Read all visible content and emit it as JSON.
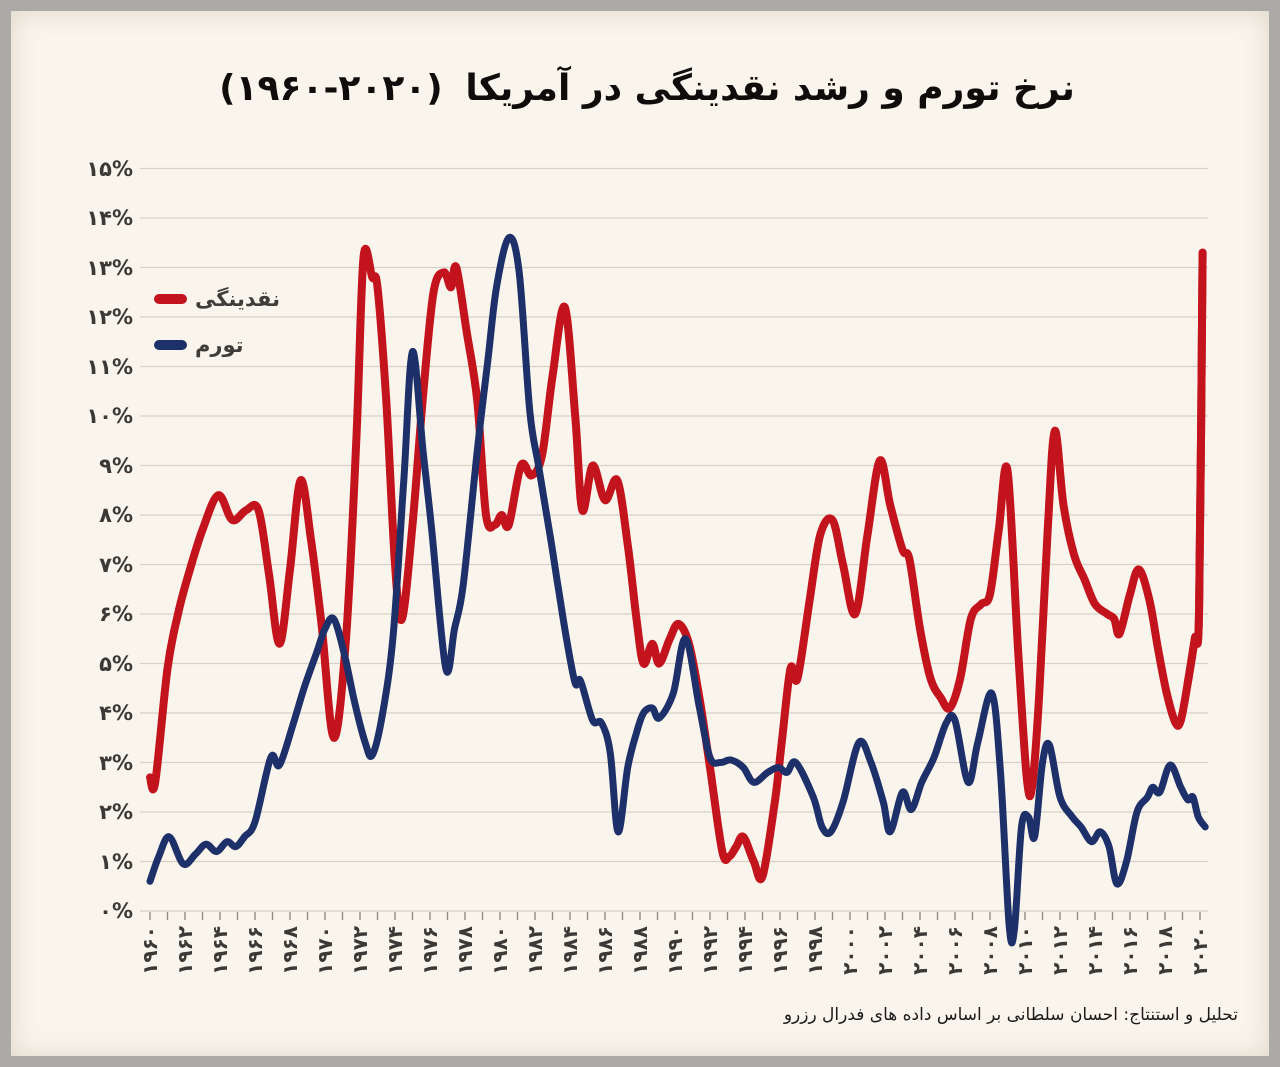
{
  "title": {
    "text": "نرخ تورم و رشد نقدینگی در آمریکا",
    "range": "(۱۹۶۰-۲۰۲۰)"
  },
  "legend": {
    "items": [
      {
        "label": "نقدینگی",
        "color": "#c3141e"
      },
      {
        "label": "تورم",
        "color": "#1e3069"
      }
    ]
  },
  "footer": {
    "text": "تحلیل و استنتاج: احسان سلطانی بر اساس داده های فدرال رزرو"
  },
  "colors": {
    "paper": "#faf5ec",
    "gridline": "#d8d2c6",
    "tick": "#8f8d86",
    "label": "#3a3936",
    "liquidity_red": "#c3141e",
    "inflation_navy": "#1e3069"
  },
  "chart_data": {
    "type": "line",
    "title": "نرخ تورم و رشد نقدینگی در آمریکا (۱۹۶۰-۲۰۲۰)",
    "xlabel": "",
    "ylabel": "%",
    "grid": true,
    "legend_position": "top-left",
    "x_axis": {
      "range": [
        1960,
        2020
      ],
      "minor_tick_step_years": 1,
      "ticks": [
        {
          "year": 1960,
          "label": "۱۹۶۰"
        },
        {
          "year": 1962,
          "label": "۱۹۶۲"
        },
        {
          "year": 1964,
          "label": "۱۹۶۴"
        },
        {
          "year": 1966,
          "label": "۱۹۶۶"
        },
        {
          "year": 1968,
          "label": "۱۹۶۸"
        },
        {
          "year": 1970,
          "label": "۱۹۷۰"
        },
        {
          "year": 1972,
          "label": "۱۹۷۲"
        },
        {
          "year": 1974,
          "label": "۱۹۷۴"
        },
        {
          "year": 1976,
          "label": "۱۹۷۶"
        },
        {
          "year": 1978,
          "label": "۱۹۷۸"
        },
        {
          "year": 1980,
          "label": "۱۹۸۰"
        },
        {
          "year": 1982,
          "label": "۱۹۸۲"
        },
        {
          "year": 1984,
          "label": "۱۹۸۴"
        },
        {
          "year": 1986,
          "label": "۱۹۸۶"
        },
        {
          "year": 1988,
          "label": "۱۹۸۸"
        },
        {
          "year": 1990,
          "label": "۱۹۹۰"
        },
        {
          "year": 1992,
          "label": "۱۹۹۲"
        },
        {
          "year": 1994,
          "label": "۱۹۹۴"
        },
        {
          "year": 1996,
          "label": "۱۹۹۶"
        },
        {
          "year": 1998,
          "label": "۱۹۹۸"
        },
        {
          "year": 2000,
          "label": "۲۰۰۰"
        },
        {
          "year": 2002,
          "label": "۲۰۰۲"
        },
        {
          "year": 2004,
          "label": "۲۰۰۴"
        },
        {
          "year": 2006,
          "label": "۲۰۰۶"
        },
        {
          "year": 2008,
          "label": "۲۰۰۸"
        },
        {
          "year": 2010,
          "label": "۲۰۱۰"
        },
        {
          "year": 2012,
          "label": "۲۰۱۲"
        },
        {
          "year": 2014,
          "label": "۲۰۱۴"
        },
        {
          "year": 2016,
          "label": "۲۰۱۶"
        },
        {
          "year": 2018,
          "label": "۲۰۱۸"
        },
        {
          "year": 2020,
          "label": "۲۰۲۰"
        }
      ]
    },
    "y_axis": {
      "range": [
        0,
        15
      ],
      "unit": "%",
      "ticks": [
        {
          "value": 0,
          "label": "۰%"
        },
        {
          "value": 1,
          "label": "۱%"
        },
        {
          "value": 2,
          "label": "۲%"
        },
        {
          "value": 3,
          "label": "۳%"
        },
        {
          "value": 4,
          "label": "۴%"
        },
        {
          "value": 5,
          "label": "۵%"
        },
        {
          "value": 6,
          "label": "۶%"
        },
        {
          "value": 7,
          "label": "۷%"
        },
        {
          "value": 8,
          "label": "۸%"
        },
        {
          "value": 9,
          "label": "۹%"
        },
        {
          "value": 10,
          "label": "۱۰%"
        },
        {
          "value": 11,
          "label": "۱۱%"
        },
        {
          "value": 12,
          "label": "۱۲%"
        },
        {
          "value": 13,
          "label": "۱۳%"
        },
        {
          "value": 14,
          "label": "۱۴%"
        },
        {
          "value": 15,
          "label": "۱۵%"
        }
      ]
    },
    "series": [
      {
        "name": "نقدینگی",
        "color": "#c3141e",
        "points": [
          [
            1960.0,
            2.7
          ],
          [
            1960.3,
            2.6
          ],
          [
            1961.0,
            4.9
          ],
          [
            1961.6,
            6.0
          ],
          [
            1962.2,
            6.8
          ],
          [
            1963.0,
            7.7
          ],
          [
            1963.9,
            8.4
          ],
          [
            1964.7,
            7.9
          ],
          [
            1965.5,
            8.1
          ],
          [
            1966.2,
            8.1
          ],
          [
            1966.8,
            6.8
          ],
          [
            1967.4,
            5.4
          ],
          [
            1968.0,
            6.9
          ],
          [
            1968.6,
            8.7
          ],
          [
            1969.2,
            7.5
          ],
          [
            1969.8,
            5.8
          ],
          [
            1970.5,
            3.5
          ],
          [
            1971.2,
            5.5
          ],
          [
            1971.8,
            9.6
          ],
          [
            1972.2,
            13.2
          ],
          [
            1972.7,
            12.8
          ],
          [
            1973.0,
            12.6
          ],
          [
            1973.5,
            10.3
          ],
          [
            1974.0,
            7.0
          ],
          [
            1974.4,
            5.9
          ],
          [
            1975.0,
            7.8
          ],
          [
            1975.6,
            10.4
          ],
          [
            1976.2,
            12.5
          ],
          [
            1976.8,
            12.9
          ],
          [
            1977.2,
            12.6
          ],
          [
            1977.5,
            13.0
          ],
          [
            1978.1,
            11.7
          ],
          [
            1978.7,
            10.3
          ],
          [
            1979.2,
            8.0
          ],
          [
            1979.7,
            7.8
          ],
          [
            1980.1,
            8.0
          ],
          [
            1980.5,
            7.8
          ],
          [
            1981.2,
            9.0
          ],
          [
            1981.8,
            8.8
          ],
          [
            1982.4,
            9.2
          ],
          [
            1983.0,
            10.8
          ],
          [
            1983.7,
            12.2
          ],
          [
            1984.3,
            10.0
          ],
          [
            1984.7,
            8.1
          ],
          [
            1985.3,
            9.0
          ],
          [
            1986.0,
            8.3
          ],
          [
            1986.7,
            8.7
          ],
          [
            1987.3,
            7.4
          ],
          [
            1987.8,
            5.9
          ],
          [
            1988.2,
            5.0
          ],
          [
            1988.7,
            5.4
          ],
          [
            1989.1,
            5.0
          ],
          [
            1989.7,
            5.5
          ],
          [
            1990.2,
            5.8
          ],
          [
            1990.8,
            5.4
          ],
          [
            1991.4,
            4.3
          ],
          [
            1992.0,
            2.9
          ],
          [
            1992.7,
            1.2
          ],
          [
            1993.1,
            1.1
          ],
          [
            1993.5,
            1.3
          ],
          [
            1993.9,
            1.5
          ],
          [
            1994.5,
            1.0
          ],
          [
            1995.0,
            0.7
          ],
          [
            1995.7,
            2.2
          ],
          [
            1996.1,
            3.4
          ],
          [
            1996.6,
            4.9
          ],
          [
            1997.0,
            4.7
          ],
          [
            1997.7,
            6.3
          ],
          [
            1998.3,
            7.6
          ],
          [
            1999.0,
            7.9
          ],
          [
            1999.6,
            7.0
          ],
          [
            2000.3,
            6.0
          ],
          [
            2001.0,
            7.6
          ],
          [
            2001.7,
            9.1
          ],
          [
            2002.3,
            8.2
          ],
          [
            2003.0,
            7.3
          ],
          [
            2003.4,
            7.1
          ],
          [
            2004.0,
            5.7
          ],
          [
            2004.6,
            4.7
          ],
          [
            2005.2,
            4.3
          ],
          [
            2005.7,
            4.1
          ],
          [
            2006.3,
            4.7
          ],
          [
            2006.9,
            5.9
          ],
          [
            2007.5,
            6.2
          ],
          [
            2008.0,
            6.4
          ],
          [
            2008.5,
            7.7
          ],
          [
            2009.0,
            8.9
          ],
          [
            2009.6,
            5.3
          ],
          [
            2010.1,
            2.7
          ],
          [
            2010.4,
            2.5
          ],
          [
            2010.8,
            4.3
          ],
          [
            2011.3,
            7.7
          ],
          [
            2011.7,
            9.7
          ],
          [
            2012.2,
            8.2
          ],
          [
            2012.8,
            7.2
          ],
          [
            2013.4,
            6.7
          ],
          [
            2014.0,
            6.2
          ],
          [
            2014.7,
            6.0
          ],
          [
            2015.1,
            5.9
          ],
          [
            2015.4,
            5.6
          ],
          [
            2016.0,
            6.4
          ],
          [
            2016.5,
            6.9
          ],
          [
            2017.1,
            6.3
          ],
          [
            2017.6,
            5.3
          ],
          [
            2018.1,
            4.4
          ],
          [
            2018.6,
            3.8
          ],
          [
            2018.9,
            3.85
          ],
          [
            2019.3,
            4.6
          ],
          [
            2019.7,
            5.5
          ],
          [
            2019.95,
            6.1
          ],
          [
            2020.15,
            13.3
          ]
        ]
      },
      {
        "name": "تورم",
        "color": "#1e3069",
        "points": [
          [
            1960.0,
            0.6
          ],
          [
            1960.5,
            1.1
          ],
          [
            1961.1,
            1.5
          ],
          [
            1961.9,
            0.95
          ],
          [
            1962.6,
            1.15
          ],
          [
            1963.2,
            1.35
          ],
          [
            1963.8,
            1.2
          ],
          [
            1964.4,
            1.4
          ],
          [
            1964.9,
            1.3
          ],
          [
            1965.4,
            1.5
          ],
          [
            1966.0,
            1.8
          ],
          [
            1966.9,
            3.1
          ],
          [
            1967.4,
            2.95
          ],
          [
            1968.2,
            3.8
          ],
          [
            1968.8,
            4.5
          ],
          [
            1969.5,
            5.2
          ],
          [
            1970.0,
            5.7
          ],
          [
            1970.5,
            5.9
          ],
          [
            1971.1,
            5.2
          ],
          [
            1971.7,
            4.2
          ],
          [
            1972.3,
            3.4
          ],
          [
            1972.7,
            3.15
          ],
          [
            1973.3,
            4.0
          ],
          [
            1973.9,
            5.6
          ],
          [
            1974.5,
            8.7
          ],
          [
            1975.0,
            11.3
          ],
          [
            1975.6,
            9.3
          ],
          [
            1976.1,
            7.7
          ],
          [
            1976.9,
            4.9
          ],
          [
            1977.4,
            5.7
          ],
          [
            1977.9,
            6.6
          ],
          [
            1978.7,
            9.3
          ],
          [
            1979.3,
            11.1
          ],
          [
            1979.8,
            12.6
          ],
          [
            1980.5,
            13.6
          ],
          [
            1981.1,
            12.9
          ],
          [
            1981.7,
            10.1
          ],
          [
            1982.2,
            9.0
          ],
          [
            1982.9,
            7.5
          ],
          [
            1983.3,
            6.6
          ],
          [
            1983.8,
            5.5
          ],
          [
            1984.3,
            4.6
          ],
          [
            1984.6,
            4.65
          ],
          [
            1985.3,
            3.85
          ],
          [
            1985.8,
            3.8
          ],
          [
            1986.3,
            3.2
          ],
          [
            1986.75,
            1.6
          ],
          [
            1987.3,
            2.9
          ],
          [
            1987.8,
            3.6
          ],
          [
            1988.2,
            4.0
          ],
          [
            1988.7,
            4.1
          ],
          [
            1989.1,
            3.9
          ],
          [
            1989.9,
            4.4
          ],
          [
            1990.6,
            5.5
          ],
          [
            1991.4,
            4.1
          ],
          [
            1992.0,
            3.1
          ],
          [
            1992.6,
            3.0
          ],
          [
            1993.2,
            3.05
          ],
          [
            1993.9,
            2.9
          ],
          [
            1994.5,
            2.6
          ],
          [
            1995.3,
            2.8
          ],
          [
            1995.9,
            2.9
          ],
          [
            1996.4,
            2.8
          ],
          [
            1996.9,
            3.0
          ],
          [
            1997.9,
            2.3
          ],
          [
            1998.4,
            1.7
          ],
          [
            1998.9,
            1.6
          ],
          [
            1999.6,
            2.2
          ],
          [
            2000.5,
            3.4
          ],
          [
            2001.2,
            3.0
          ],
          [
            2001.9,
            2.2
          ],
          [
            2002.3,
            1.6
          ],
          [
            2003.0,
            2.4
          ],
          [
            2003.5,
            2.05
          ],
          [
            2004.1,
            2.6
          ],
          [
            2004.8,
            3.1
          ],
          [
            2005.5,
            3.8
          ],
          [
            2006.0,
            3.85
          ],
          [
            2006.75,
            2.6
          ],
          [
            2007.3,
            3.4
          ],
          [
            2008.1,
            4.4
          ],
          [
            2008.6,
            2.8
          ],
          [
            2009.1,
            -0.3
          ],
          [
            2009.4,
            -0.35
          ],
          [
            2009.8,
            1.7
          ],
          [
            2010.2,
            1.9
          ],
          [
            2010.55,
            1.5
          ],
          [
            2011.0,
            3.0
          ],
          [
            2011.4,
            3.35
          ],
          [
            2012.0,
            2.3
          ],
          [
            2012.7,
            1.9
          ],
          [
            2013.2,
            1.7
          ],
          [
            2013.8,
            1.4
          ],
          [
            2014.3,
            1.6
          ],
          [
            2014.8,
            1.3
          ],
          [
            2015.25,
            0.55
          ],
          [
            2015.8,
            1.0
          ],
          [
            2016.4,
            2.0
          ],
          [
            2017.0,
            2.3
          ],
          [
            2017.3,
            2.5
          ],
          [
            2017.7,
            2.4
          ],
          [
            2018.3,
            2.95
          ],
          [
            2018.9,
            2.5
          ],
          [
            2019.3,
            2.25
          ],
          [
            2019.6,
            2.3
          ],
          [
            2019.9,
            1.9
          ],
          [
            2020.3,
            1.7
          ]
        ]
      }
    ]
  }
}
